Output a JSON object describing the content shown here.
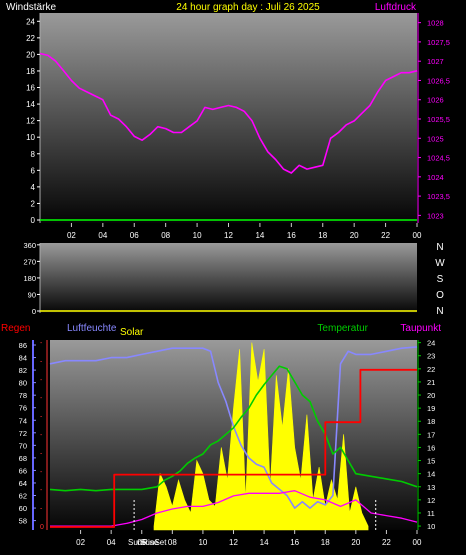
{
  "header": {
    "title": "24 hour graph day : Juli 26 2025",
    "left_label": "Windstärke",
    "right_label": "Luftdruck"
  },
  "colors": {
    "background": "#000000",
    "title": "#ffff00",
    "white_text": "#ffffff",
    "pressure": "#ff00ff",
    "wind": "#00ff00",
    "humidity": "#8888ff",
    "solar": "#ffff00",
    "temperature": "#00cc00",
    "rain": "#ff0000",
    "dewpoint": "#ff00ff"
  },
  "chart_data": [
    {
      "type": "line",
      "name": "wind-pressure",
      "x_ticks": [
        "02",
        "04",
        "06",
        "08",
        "10",
        "12",
        "14",
        "16",
        "18",
        "20",
        "22",
        "00"
      ],
      "left_axis": {
        "label": "Windstärke",
        "ticks": [
          0,
          2,
          4,
          6,
          8,
          10,
          12,
          14,
          16,
          18,
          20,
          22,
          24
        ],
        "ylim": [
          0,
          25
        ]
      },
      "right_axis": {
        "label": "Luftdruck",
        "ticks": [
          "1023",
          "1023,5",
          "1024",
          "1024,5",
          "1025",
          "1025,5",
          "1026",
          "1026,5",
          "1027",
          "1027,5",
          "1028"
        ],
        "ylim": [
          1022.88,
          1028.25
        ]
      },
      "series": [
        {
          "axis": "left",
          "x": [
            0,
            24
          ],
          "y": [
            0,
            0
          ]
        },
        {
          "axis": "right",
          "x": [
            0,
            0.5,
            1,
            1.5,
            2,
            2.5,
            3,
            3.5,
            4,
            4.5,
            5,
            5.5,
            6,
            6.5,
            7,
            7.5,
            8,
            8.5,
            9,
            9.5,
            10,
            10.5,
            11,
            11.5,
            12,
            12.5,
            13,
            13.5,
            14,
            14.5,
            15,
            15.5,
            16,
            16.5,
            17,
            17.5,
            18,
            18.5,
            19,
            19.5,
            20,
            20.5,
            21,
            21.5,
            22,
            22.5,
            23,
            23.5,
            24
          ],
          "y": [
            1027.2,
            1027.15,
            1027.0,
            1026.75,
            1026.5,
            1026.3,
            1026.2,
            1026.1,
            1026.0,
            1025.6,
            1025.5,
            1025.3,
            1025.05,
            1024.95,
            1025.1,
            1025.3,
            1025.25,
            1025.15,
            1025.15,
            1025.3,
            1025.45,
            1025.8,
            1025.75,
            1025.8,
            1025.85,
            1025.8,
            1025.7,
            1025.45,
            1025.0,
            1024.65,
            1024.45,
            1024.2,
            1024.1,
            1024.3,
            1024.2,
            1024.25,
            1024.3,
            1025.0,
            1025.15,
            1025.35,
            1025.45,
            1025.65,
            1025.85,
            1026.2,
            1026.5,
            1026.6,
            1026.7,
            1026.7,
            1026.75
          ]
        }
      ]
    },
    {
      "type": "scatter",
      "name": "wind-direction",
      "x_ticks": [
        "02",
        "04",
        "06",
        "08",
        "10",
        "12",
        "14",
        "16",
        "18",
        "20",
        "22",
        "00"
      ],
      "left_axis": {
        "ticks": [
          0,
          90,
          180,
          270,
          360
        ],
        "ylim": [
          0,
          370
        ]
      },
      "right_labels": [
        "N",
        "W",
        "S",
        "O",
        "N"
      ],
      "series": [
        {
          "x": [
            0,
            24
          ],
          "y": [
            0,
            0
          ]
        }
      ]
    },
    {
      "type": "line",
      "name": "humidity-solar-temp-rain-dew",
      "x_ticks": [
        "02",
        "04",
        "06",
        "08",
        "10",
        "12",
        "14",
        "16",
        "18",
        "20",
        "22",
        "00"
      ],
      "annotations": [
        "SunRise",
        "SunSet"
      ],
      "legend": [
        "Regen",
        "Luftfeuchte",
        "Solar",
        "Temperatur",
        "Taupunkt"
      ],
      "left_axis": {
        "label": "Luftfeuchte",
        "ticks": [
          58,
          60,
          62,
          64,
          66,
          68,
          70,
          72,
          74,
          76,
          78,
          80,
          82,
          84,
          86
        ],
        "ylim": [
          56.5,
          86.8
        ]
      },
      "right_axis": {
        "label": "Temperatur",
        "ticks": [
          10,
          11,
          12,
          13,
          14,
          15,
          16,
          17,
          18,
          19,
          20,
          21,
          22,
          23,
          24
        ],
        "ylim": [
          9.7,
          24.2
        ]
      },
      "rain_axis": {
        "label": "Regen",
        "ticks": [
          "0",
          "-",
          "-",
          "-",
          "-",
          "-",
          "-",
          "-",
          "-",
          "-",
          "-"
        ]
      },
      "series": [
        {
          "name": "Luftfeuchte",
          "axis": "left",
          "x": [
            0,
            1,
            2,
            3,
            4,
            5,
            6,
            7,
            8,
            9,
            10,
            10.5,
            11,
            11.5,
            12,
            12.5,
            13,
            13.5,
            14,
            14.5,
            15,
            15.5,
            16,
            16.5,
            17,
            17.5,
            18,
            18.5,
            19,
            19.5,
            20,
            21,
            22,
            23,
            24
          ],
          "y": [
            83,
            83.5,
            83.5,
            83.5,
            84,
            84,
            84.5,
            85,
            85.5,
            85.5,
            85.5,
            85,
            80,
            77,
            73,
            70,
            68,
            67,
            66.5,
            64,
            63,
            62,
            60,
            61,
            60,
            61,
            60.5,
            62,
            83,
            85,
            84.5,
            84.5,
            85,
            85.5,
            85.7
          ]
        },
        {
          "name": "Solar",
          "axis": "right",
          "x": [
            6.8,
            7.2,
            7.6,
            8,
            8.4,
            8.8,
            9.2,
            9.6,
            10,
            10.4,
            10.8,
            11.2,
            11.6,
            12,
            12.4,
            12.8,
            13.2,
            13.6,
            14,
            14.4,
            14.8,
            15.2,
            15.6,
            16,
            16.4,
            16.8,
            17.2,
            17.6,
            18,
            18.4,
            18.8,
            19.2,
            19.6,
            20,
            20.4,
            20.8
          ],
          "y": [
            10,
            14,
            13,
            11.5,
            13.5,
            12,
            11,
            15,
            14,
            12,
            11.5,
            16,
            13.5,
            19,
            23.5,
            12,
            24,
            21,
            23.5,
            13,
            21.5,
            17.5,
            22,
            16,
            13.5,
            18.5,
            12,
            14.5,
            11.5,
            13.5,
            12,
            17,
            11,
            13,
            11,
            10
          ]
        },
        {
          "name": "Temperatur",
          "axis": "right",
          "x": [
            0,
            1,
            2,
            3,
            4,
            5,
            6,
            7,
            7.5,
            8,
            8.5,
            9,
            9.5,
            10,
            10.5,
            11,
            11.5,
            12,
            12.5,
            13,
            13.5,
            14,
            14.5,
            15,
            15.5,
            16,
            16.5,
            17,
            17.5,
            18,
            18.5,
            19,
            19.5,
            20,
            21,
            22,
            23,
            24
          ],
          "y": [
            12.8,
            12.7,
            12.8,
            12.7,
            12.8,
            12.8,
            12.8,
            13,
            13.5,
            13.8,
            14.2,
            14.8,
            15.2,
            15.5,
            16.2,
            16.5,
            17,
            17.5,
            18.3,
            19,
            20,
            20.8,
            21.5,
            22.2,
            22,
            21,
            20,
            19.5,
            18,
            17,
            15.5,
            16,
            15,
            14,
            13.8,
            13.6,
            13.4,
            13.0
          ]
        },
        {
          "name": "Regen",
          "axis": "rain",
          "x": [
            0,
            4.2,
            4.2,
            18,
            18,
            20.3,
            20.3,
            24
          ],
          "y": [
            0,
            0,
            1,
            1,
            2,
            2,
            3,
            3
          ]
        },
        {
          "name": "Taupunkt",
          "axis": "right",
          "x": [
            0,
            1,
            2,
            3,
            4,
            5,
            6,
            7,
            8,
            9,
            10,
            11,
            12,
            13,
            14,
            15,
            16,
            17,
            18,
            19,
            20,
            21,
            22,
            23,
            24
          ],
          "y": [
            10.0,
            10.0,
            10.0,
            10.0,
            10.0,
            10.2,
            10.5,
            11.0,
            11.3,
            11.5,
            11.5,
            11.8,
            12.3,
            12.5,
            12.5,
            12.5,
            12.7,
            12.2,
            12.0,
            11.5,
            12.0,
            11.0,
            10.8,
            10.6,
            10.3
          ]
        }
      ]
    }
  ]
}
